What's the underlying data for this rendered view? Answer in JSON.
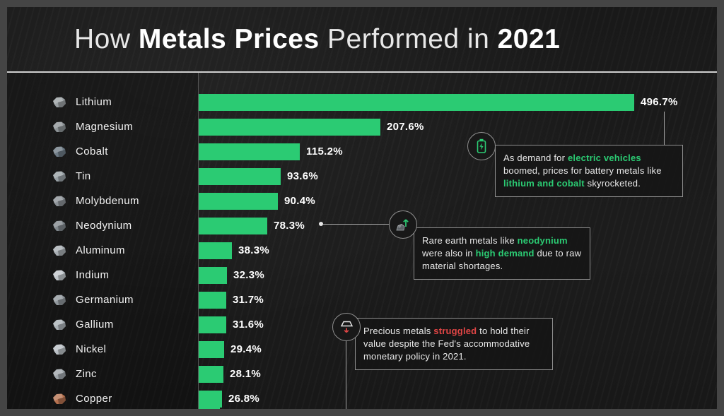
{
  "title": {
    "part1": "How ",
    "part2": "Metals Prices",
    "part3": " Performed in ",
    "part4": "2021"
  },
  "colors": {
    "bar_green": "#2bcb73",
    "highlight_green": "#2bcb73",
    "highlight_red": "#e04545"
  },
  "chart_data": {
    "type": "bar",
    "orientation": "horizontal",
    "title": "How Metals Prices Performed in 2021",
    "unit": "%",
    "categories": [
      "Lithium",
      "Magnesium",
      "Cobalt",
      "Tin",
      "Molybdenum",
      "Neodynium",
      "Aluminum",
      "Indium",
      "Germanium",
      "Gallium",
      "Nickel",
      "Zinc",
      "Copper"
    ],
    "values": [
      496.7,
      207.6,
      115.2,
      93.6,
      90.4,
      78.3,
      38.3,
      32.3,
      31.7,
      31.6,
      29.4,
      28.1,
      26.8
    ],
    "value_labels": [
      "496.7%",
      "207.6%",
      "115.2%",
      "93.6%",
      "90.4%",
      "78.3%",
      "38.3%",
      "32.3%",
      "31.7%",
      "31.6%",
      "29.4%",
      "28.1%",
      "26.8%"
    ],
    "icon_colors": [
      "#9aa0a3",
      "#8d9396",
      "#6d7a85",
      "#98a0a5",
      "#8b9196",
      "#7f868b",
      "#a7adb2",
      "#c0c6cb",
      "#8f969b",
      "#aab1b6",
      "#b9bfc4",
      "#9fa6ab",
      "#b5714f"
    ],
    "bar_color": "#2bcb73",
    "xlim": [
      0,
      540
    ],
    "grid": false,
    "legend": false,
    "partial_bottom_bar": {
      "visible": true,
      "approx_value": 24
    }
  },
  "annotations": [
    {
      "name": "battery-metals",
      "segments": [
        {
          "text": "As demand for "
        },
        {
          "text": "electric vehicles",
          "style": "green"
        },
        {
          "text": " boomed, prices for battery metals like "
        },
        {
          "text": "lithium and cobalt",
          "style": "green"
        },
        {
          "text": " skyrocketed."
        }
      ]
    },
    {
      "name": "rare-earth",
      "segments": [
        {
          "text": "Rare earth metals like "
        },
        {
          "text": "neodynium",
          "style": "green"
        },
        {
          "text": " were also in "
        },
        {
          "text": "high demand",
          "style": "green"
        },
        {
          "text": " due to raw material shortages."
        }
      ]
    },
    {
      "name": "precious-metals",
      "segments": [
        {
          "text": "Precious metals "
        },
        {
          "text": "struggled",
          "style": "red"
        },
        {
          "text": " to hold their value despite the Fed's accommodative monetary policy in 2021."
        }
      ]
    }
  ]
}
